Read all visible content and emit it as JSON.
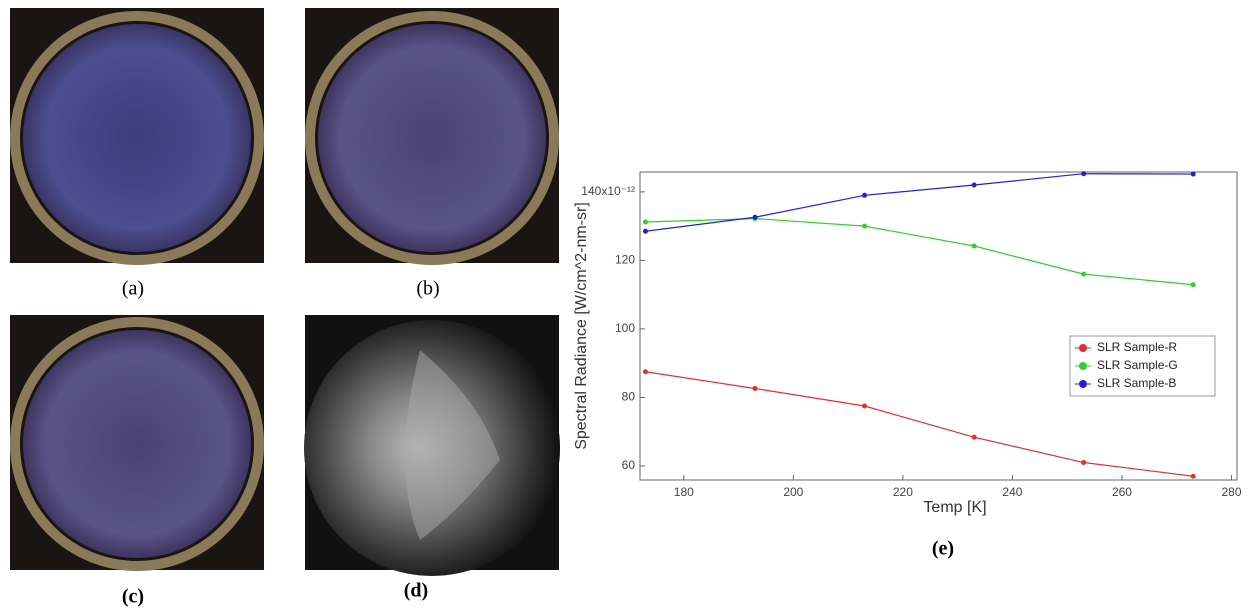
{
  "panels": {
    "captions": [
      "(a)",
      "(b)",
      "(c)",
      "(d)",
      "(e)"
    ]
  },
  "chart_data": {
    "type": "line",
    "x_label": "Temp [K]",
    "y_label": "Spectral Radiance [W/cm^2-nm-sr]",
    "x": [
      173,
      193,
      213,
      233,
      253,
      273
    ],
    "series": [
      {
        "name": "SLR Sample-R",
        "color": "#e03030",
        "values": [
          87.5,
          82.6,
          77.5,
          68.4,
          61,
          57
        ]
      },
      {
        "name": "SLR Sample-G",
        "color": "#33cc33",
        "values": [
          131.2,
          132.2,
          130,
          124.2,
          116,
          112.9
        ]
      },
      {
        "name": "SLR Sample-B",
        "color": "#2222cc",
        "values": [
          128.5,
          132.6,
          139,
          142,
          145.3,
          145.2
        ]
      }
    ],
    "xlim": [
      172,
      281
    ],
    "xticks": [
      180,
      200,
      220,
      240,
      260,
      280
    ],
    "ylim": [
      55.9,
      145.8
    ],
    "yticks": [
      60,
      80,
      100,
      120,
      {
        "value": 140,
        "label": "140x10⁻¹²"
      }
    ],
    "legend": "center right",
    "grid": false
  }
}
